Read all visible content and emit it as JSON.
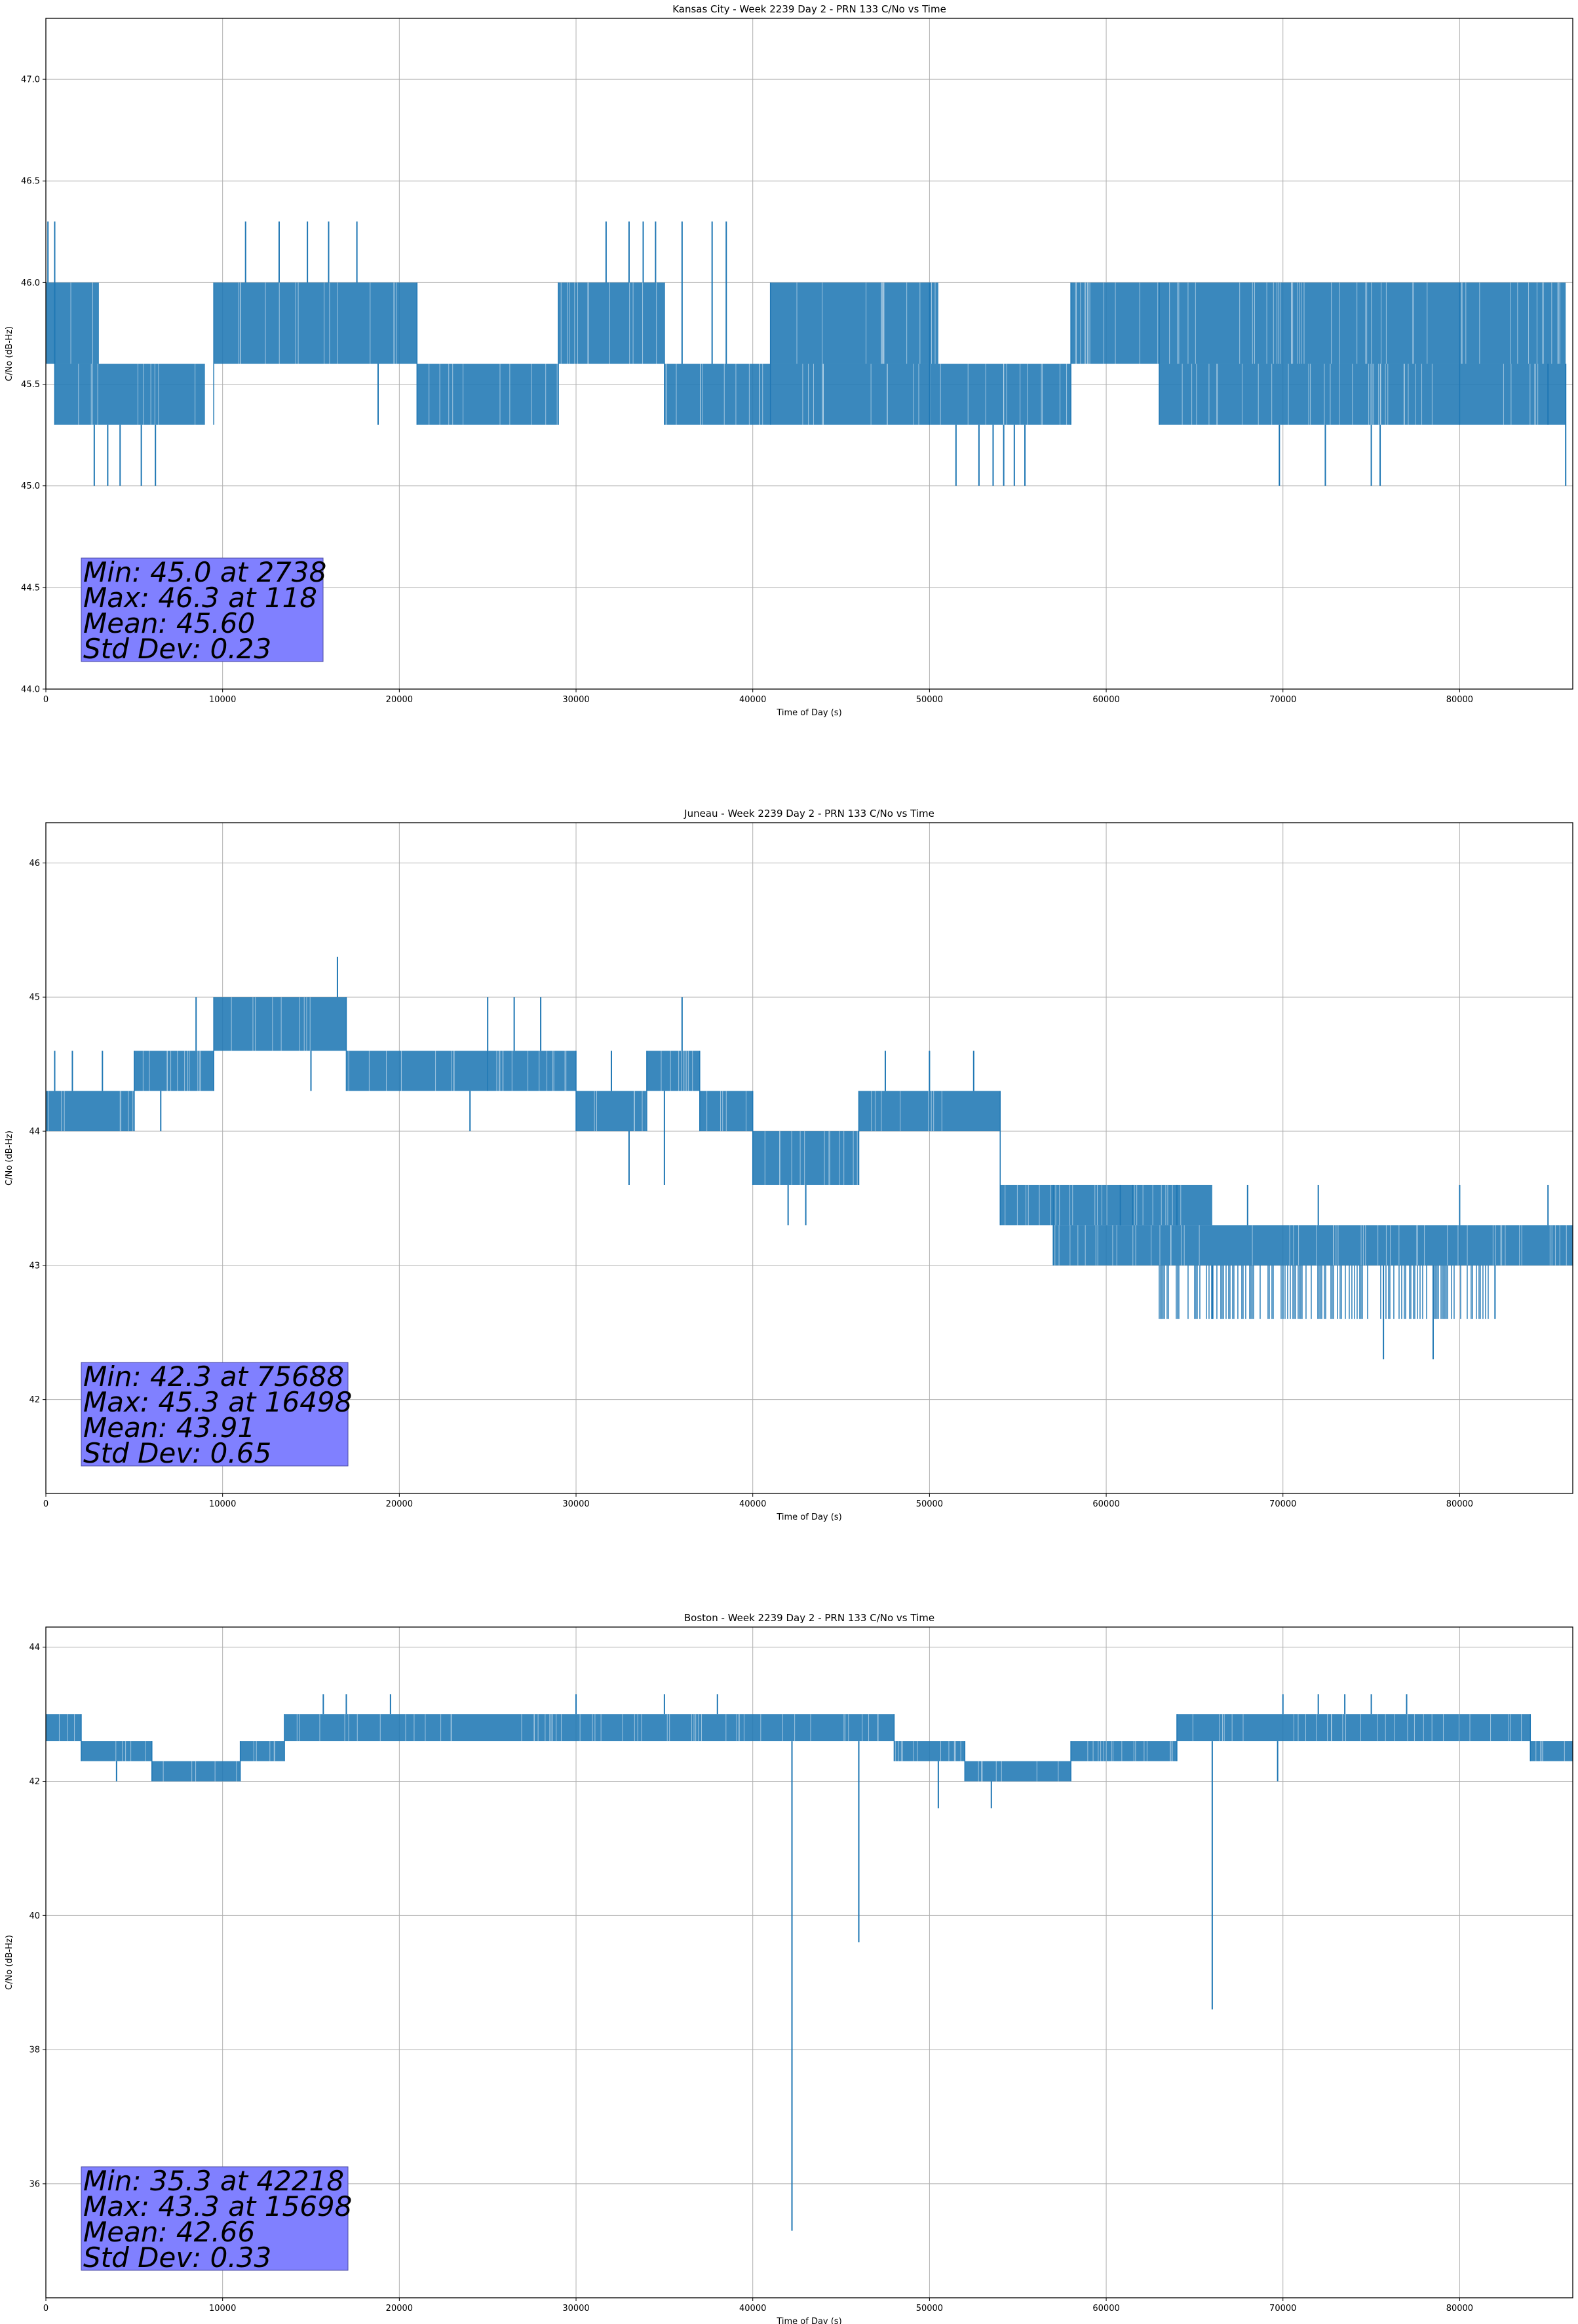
{
  "chart_data": [
    {
      "type": "line",
      "title": "Kansas City - Week 2239 Day 2 - PRN 133 C/No vs Time",
      "xlabel": "Time of Day (s)",
      "ylabel": "C/No (dB-Hz)",
      "xlim": [
        0,
        86400
      ],
      "ylim": [
        44.0,
        47.3
      ],
      "xticks": [
        0,
        10000,
        20000,
        30000,
        40000,
        50000,
        60000,
        70000,
        80000
      ],
      "yticks": [
        44.0,
        44.5,
        45.0,
        45.5,
        46.0,
        46.5,
        47.0
      ],
      "ytick_labels": [
        "44.0",
        "44.5",
        "45.0",
        "45.5",
        "46.0",
        "46.5",
        "47.0"
      ],
      "grid": true,
      "color": "#1f77b4",
      "series": [
        {
          "segments": [
            {
              "x": [
                0,
                3000
              ],
              "lo": 45.6,
              "hi": 46.0
            },
            {
              "x": [
                500,
                9000
              ],
              "lo": 45.3,
              "hi": 45.6
            },
            {
              "x": [
                9500,
                21000
              ],
              "lo": 45.6,
              "hi": 46.0
            },
            {
              "x": [
                21000,
                29000
              ],
              "lo": 45.3,
              "hi": 45.6
            },
            {
              "x": [
                29000,
                35000
              ],
              "lo": 45.6,
              "hi": 46.0
            },
            {
              "x": [
                35000,
                50000
              ],
              "lo": 45.3,
              "hi": 45.6
            },
            {
              "x": [
                41000,
                50500
              ],
              "lo": 45.6,
              "hi": 46.0
            },
            {
              "x": [
                50000,
                58000
              ],
              "lo": 45.3,
              "hi": 45.6
            },
            {
              "x": [
                58000,
                80000
              ],
              "lo": 45.6,
              "hi": 46.0
            },
            {
              "x": [
                63000,
                86400
              ],
              "lo": 45.3,
              "hi": 45.6
            },
            {
              "x": [
                80000,
                86400
              ],
              "lo": 45.6,
              "hi": 46.0
            }
          ],
          "spikes": [
            [
              118,
              46.3
            ],
            [
              500,
              46.3
            ],
            [
              11300,
              46.3
            ],
            [
              13200,
              46.3
            ],
            [
              14800,
              46.3
            ],
            [
              16000,
              46.3
            ],
            [
              17600,
              46.3
            ],
            [
              31700,
              46.3
            ],
            [
              33000,
              46.3
            ],
            [
              33800,
              46.3
            ],
            [
              34500,
              46.3
            ],
            [
              36000,
              46.3
            ],
            [
              37700,
              46.3
            ],
            [
              38500,
              46.3
            ],
            [
              2738,
              45.0
            ],
            [
              3500,
              45.0
            ],
            [
              4200,
              45.0
            ],
            [
              5400,
              45.0
            ],
            [
              6200,
              45.0
            ],
            [
              51500,
              45.0
            ],
            [
              52800,
              45.0
            ],
            [
              53600,
              45.0
            ],
            [
              54200,
              45.0
            ],
            [
              54800,
              45.0
            ],
            [
              55400,
              45.0
            ],
            [
              69800,
              45.0
            ],
            [
              72400,
              45.0
            ],
            [
              75000,
              45.0
            ],
            [
              75500,
              45.0
            ],
            [
              86000,
              45.0
            ],
            [
              1500,
              45.3
            ],
            [
              7000,
              45.3
            ],
            [
              18800,
              45.3
            ],
            [
              38200,
              45.3
            ],
            [
              68200,
              45.3
            ],
            [
              85000,
              45.3
            ]
          ],
          "cutoff_x": 86000
        }
      ],
      "annotation": [
        "Min: 45.0 at 2738",
        "Max: 46.3 at 118",
        "Mean: 45.60",
        "Std Dev: 0.23"
      ],
      "annotation_color": "#8080ff"
    },
    {
      "type": "line",
      "title": "Juneau - Week 2239 Day 2 - PRN 133 C/No vs Time",
      "xlabel": "Time of Day (s)",
      "ylabel": "C/No (dB-Hz)",
      "xlim": [
        0,
        86400
      ],
      "ylim": [
        41.3,
        46.3
      ],
      "xticks": [
        0,
        10000,
        20000,
        30000,
        40000,
        50000,
        60000,
        70000,
        80000
      ],
      "yticks": [
        42,
        43,
        44,
        45,
        46
      ],
      "ytick_labels": [
        "42",
        "43",
        "44",
        "45",
        "46"
      ],
      "grid": true,
      "color": "#1f77b4",
      "series": [
        {
          "segments": [
            {
              "x": [
                0,
                5000
              ],
              "lo": 44.0,
              "hi": 44.3
            },
            {
              "x": [
                5000,
                9500
              ],
              "lo": 44.3,
              "hi": 44.6
            },
            {
              "x": [
                9500,
                17000
              ],
              "lo": 44.6,
              "hi": 45.0
            },
            {
              "x": [
                17000,
                25000
              ],
              "lo": 44.3,
              "hi": 44.6
            },
            {
              "x": [
                25000,
                30000
              ],
              "lo": 44.3,
              "hi": 44.6
            },
            {
              "x": [
                30000,
                34000
              ],
              "lo": 44.0,
              "hi": 44.3
            },
            {
              "x": [
                34000,
                37000
              ],
              "lo": 44.3,
              "hi": 44.6
            },
            {
              "x": [
                37000,
                40000
              ],
              "lo": 44.0,
              "hi": 44.3
            },
            {
              "x": [
                40000,
                46000
              ],
              "lo": 43.6,
              "hi": 44.0
            },
            {
              "x": [
                46000,
                54000
              ],
              "lo": 44.0,
              "hi": 44.3
            },
            {
              "x": [
                54000,
                66000
              ],
              "lo": 43.3,
              "hi": 43.6
            },
            {
              "x": [
                57000,
                86400
              ],
              "lo": 43.0,
              "hi": 43.3
            }
          ],
          "spikes": [
            [
              16498,
              45.3
            ],
            [
              8500,
              45.0
            ],
            [
              25000,
              45.0
            ],
            [
              26500,
              45.0
            ],
            [
              28000,
              45.0
            ],
            [
              36000,
              45.0
            ],
            [
              500,
              44.6
            ],
            [
              1500,
              44.6
            ],
            [
              3200,
              44.6
            ],
            [
              32000,
              44.6
            ],
            [
              47500,
              44.6
            ],
            [
              50000,
              44.6
            ],
            [
              52500,
              44.6
            ],
            [
              6500,
              44.0
            ],
            [
              15000,
              44.3
            ],
            [
              24000,
              44.0
            ],
            [
              33000,
              43.6
            ],
            [
              35000,
              43.6
            ],
            [
              42000,
              43.3
            ],
            [
              43000,
              43.3
            ],
            [
              44500,
              43.6
            ],
            [
              60800,
              43.6
            ],
            [
              61500,
              43.6
            ],
            [
              64000,
              43.6
            ],
            [
              68000,
              43.6
            ],
            [
              72000,
              43.6
            ],
            [
              80000,
              43.6
            ],
            [
              85000,
              43.6
            ],
            [
              66000,
              42.6
            ],
            [
              70000,
              42.6
            ],
            [
              75688,
              42.3
            ],
            [
              78500,
              42.3
            ],
            [
              82000,
              42.6
            ]
          ],
          "bands": [
            {
              "x": [
                63000,
                82000
              ],
              "lo": 42.6,
              "hi": 43.0
            }
          ],
          "cutoff_x": 86400
        }
      ],
      "annotation": [
        "Min: 42.3 at 75688",
        "Max: 45.3 at 16498",
        "Mean: 43.91",
        "Std Dev: 0.65"
      ],
      "annotation_color": "#8080ff"
    },
    {
      "type": "line",
      "title": "Boston - Week 2239 Day 2 - PRN 133 C/No vs Time",
      "xlabel": "Time of Day (s)",
      "ylabel": "C/No (dB-Hz)",
      "xlim": [
        0,
        86400
      ],
      "ylim": [
        34.3,
        44.3
      ],
      "xticks": [
        0,
        10000,
        20000,
        30000,
        40000,
        50000,
        60000,
        70000,
        80000
      ],
      "yticks": [
        36,
        38,
        40,
        42,
        44
      ],
      "ytick_labels": [
        "36",
        "38",
        "40",
        "42",
        "44"
      ],
      "grid": true,
      "color": "#1f77b4",
      "series": [
        {
          "segments": [
            {
              "x": [
                0,
                2000
              ],
              "lo": 42.6,
              "hi": 43.0
            },
            {
              "x": [
                2000,
                6000
              ],
              "lo": 42.3,
              "hi": 42.6
            },
            {
              "x": [
                6000,
                11000
              ],
              "lo": 42.0,
              "hi": 42.3
            },
            {
              "x": [
                11000,
                13500
              ],
              "lo": 42.3,
              "hi": 42.6
            },
            {
              "x": [
                13500,
                48000
              ],
              "lo": 42.6,
              "hi": 43.0
            },
            {
              "x": [
                48000,
                52000
              ],
              "lo": 42.3,
              "hi": 42.6
            },
            {
              "x": [
                52000,
                58000
              ],
              "lo": 42.0,
              "hi": 42.3
            },
            {
              "x": [
                58000,
                64000
              ],
              "lo": 42.3,
              "hi": 42.6
            },
            {
              "x": [
                64000,
                84000
              ],
              "lo": 42.6,
              "hi": 43.0
            },
            {
              "x": [
                84000,
                86400
              ],
              "lo": 42.3,
              "hi": 42.6
            }
          ],
          "spikes": [
            [
              15698,
              43.3
            ],
            [
              17000,
              43.3
            ],
            [
              19500,
              43.3
            ],
            [
              30000,
              43.3
            ],
            [
              35000,
              43.3
            ],
            [
              38000,
              43.3
            ],
            [
              70000,
              43.3
            ],
            [
              72000,
              43.3
            ],
            [
              73500,
              43.3
            ],
            [
              75000,
              43.3
            ],
            [
              77000,
              43.3
            ],
            [
              42218,
              35.3
            ],
            [
              46000,
              39.6
            ],
            [
              66000,
              38.6
            ],
            [
              4000,
              42.0
            ],
            [
              50500,
              41.6
            ],
            [
              53500,
              41.6
            ],
            [
              69700,
              42.0
            ]
          ],
          "cutoff_x": 86400
        }
      ],
      "annotation": [
        "Min: 35.3 at 42218",
        "Max: 43.3 at 15698",
        "Mean: 42.66",
        "Std Dev: 0.33"
      ],
      "annotation_color": "#8080ff"
    }
  ]
}
